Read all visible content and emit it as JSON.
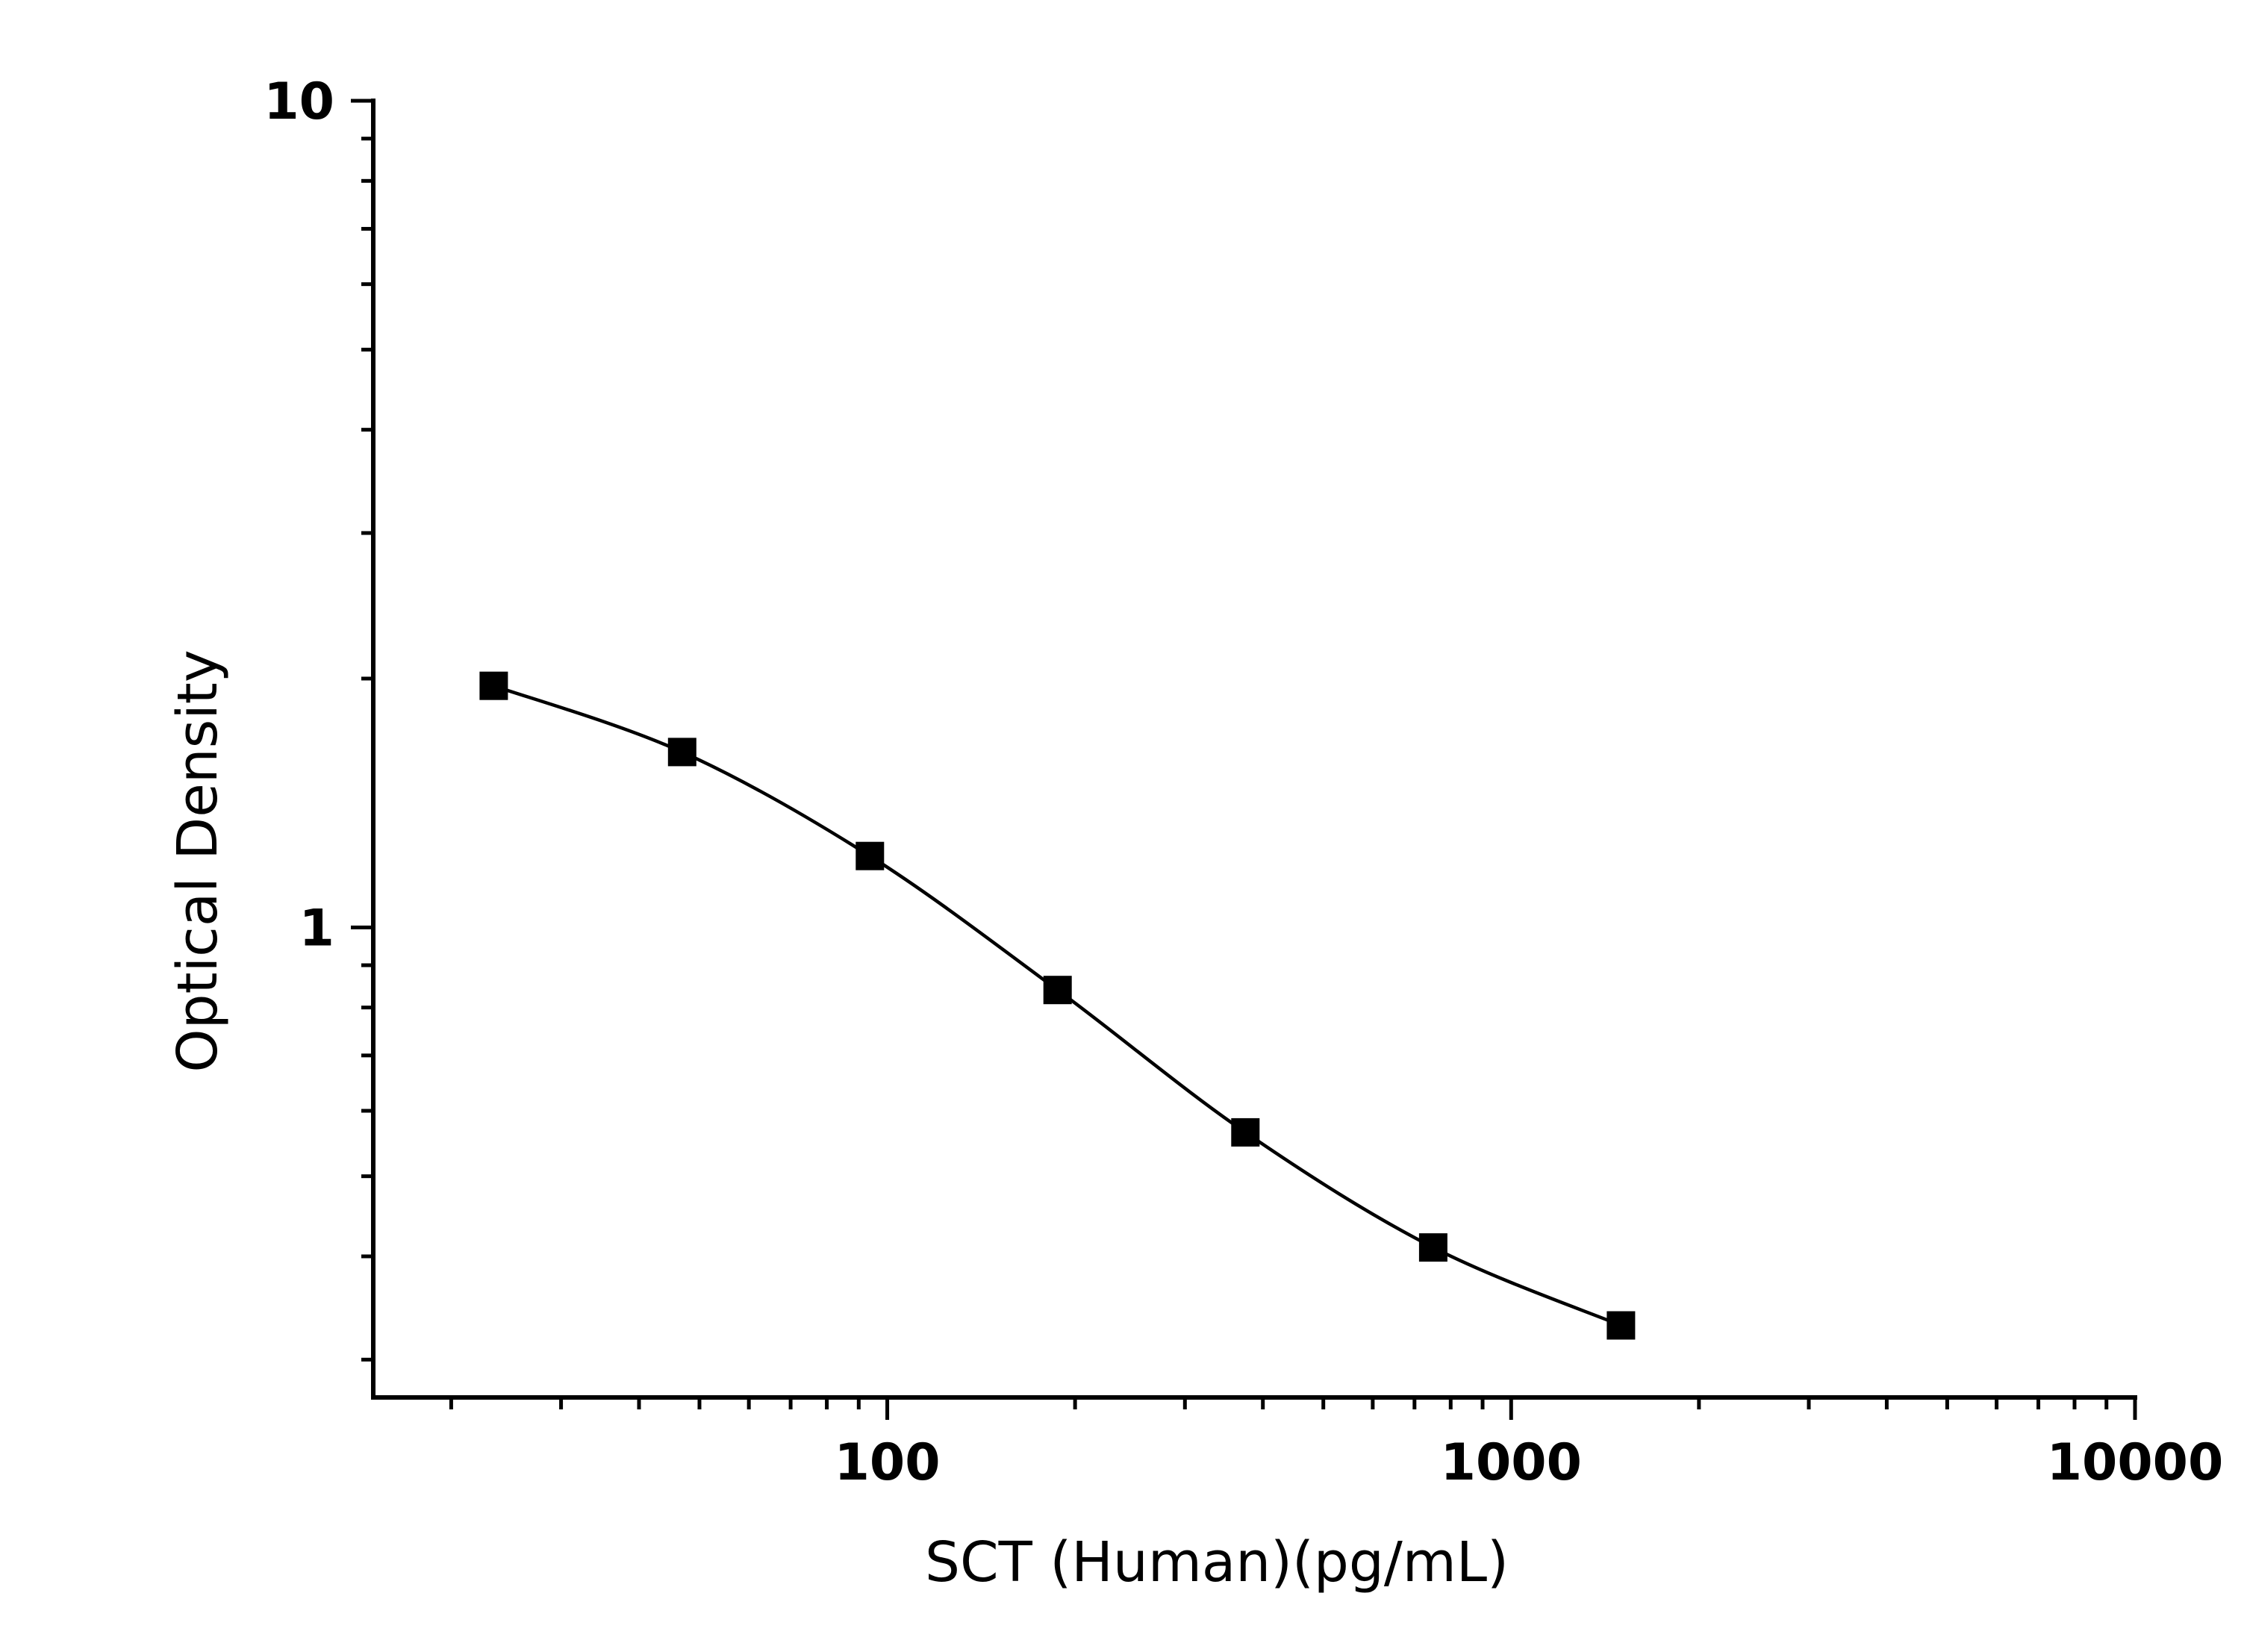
{
  "chart_data": {
    "type": "scatter",
    "title": "",
    "xlabel": "SCT (Human)(pg/mL)",
    "ylabel": "Optical Density",
    "x_scale": "log",
    "y_scale": "log",
    "xlim": [
      15,
      10000
    ],
    "ylim": [
      0.27,
      10
    ],
    "x_ticks": [
      {
        "value": 100,
        "label": "100"
      },
      {
        "value": 1000,
        "label": "1000"
      },
      {
        "value": 10000,
        "label": "10000"
      }
    ],
    "y_ticks": [
      {
        "value": 1,
        "label": "1"
      },
      {
        "value": 10,
        "label": "10"
      }
    ],
    "grid": false,
    "legend": "none",
    "series": [
      {
        "marker": "square",
        "color": "#000000",
        "fit": "smooth curve",
        "points": [
          {
            "x": 23.4,
            "y": 1.96
          },
          {
            "x": 46.9,
            "y": 1.63
          },
          {
            "x": 93.8,
            "y": 1.22
          },
          {
            "x": 187.5,
            "y": 0.84
          },
          {
            "x": 375,
            "y": 0.565
          },
          {
            "x": 750,
            "y": 0.41
          },
          {
            "x": 1500,
            "y": 0.33
          }
        ]
      }
    ]
  }
}
